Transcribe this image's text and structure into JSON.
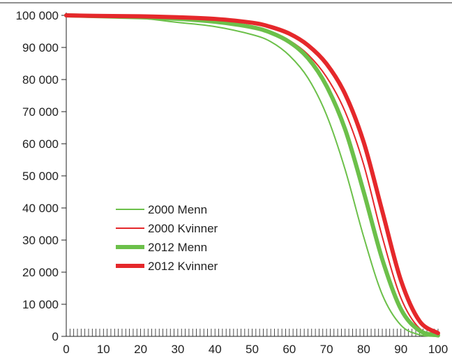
{
  "chart_data": {
    "type": "line",
    "title": "",
    "xlabel": "",
    "ylabel": "",
    "xlim": [
      0,
      100
    ],
    "ylim": [
      0,
      100000
    ],
    "x_ticks": [
      0,
      10,
      20,
      30,
      40,
      50,
      60,
      70,
      80,
      90,
      100
    ],
    "x_tick_labels": [
      "0",
      "10",
      "20",
      "30",
      "40",
      "50",
      "60",
      "70",
      "80",
      "90",
      "100"
    ],
    "y_ticks": [
      0,
      10000,
      20000,
      30000,
      40000,
      50000,
      60000,
      70000,
      80000,
      90000,
      100000
    ],
    "y_tick_labels": [
      "0",
      "10 000",
      "20 000",
      "30 000",
      "40 000",
      "50 000",
      "60 000",
      "70 000",
      "80 000",
      "90 000",
      "100 000"
    ],
    "grid": false,
    "legend_position": "center-left",
    "x": [
      0,
      10,
      20,
      30,
      40,
      50,
      55,
      60,
      65,
      70,
      75,
      80,
      85,
      90,
      95,
      100
    ],
    "series": [
      {
        "name": "2000 Menn",
        "color": "#6cc04a",
        "line_style": "thin",
        "values": [
          100000,
          99500,
          99100,
          97800,
          96500,
          94000,
          91800,
          87500,
          80500,
          69000,
          52000,
          31000,
          13000,
          3500,
          500,
          0
        ]
      },
      {
        "name": "2000 Kvinner",
        "color": "#e5282b",
        "line_style": "thin",
        "values": [
          100000,
          99700,
          99500,
          99000,
          98200,
          96700,
          95000,
          92200,
          87800,
          80800,
          70000,
          53500,
          31000,
          12000,
          2500,
          500
        ]
      },
      {
        "name": "2012 Menn",
        "color": "#6cc04a",
        "line_style": "thick",
        "values": [
          100000,
          99700,
          99400,
          98900,
          98000,
          96300,
          94600,
          91700,
          86700,
          78000,
          64500,
          45000,
          24000,
          8500,
          1800,
          300
        ]
      },
      {
        "name": "2012 Kvinner",
        "color": "#e5282b",
        "line_style": "thick",
        "values": [
          100000,
          99800,
          99700,
          99400,
          98900,
          97700,
          96400,
          94300,
          90700,
          84900,
          75500,
          60500,
          39000,
          17500,
          4800,
          1000
        ]
      }
    ]
  }
}
